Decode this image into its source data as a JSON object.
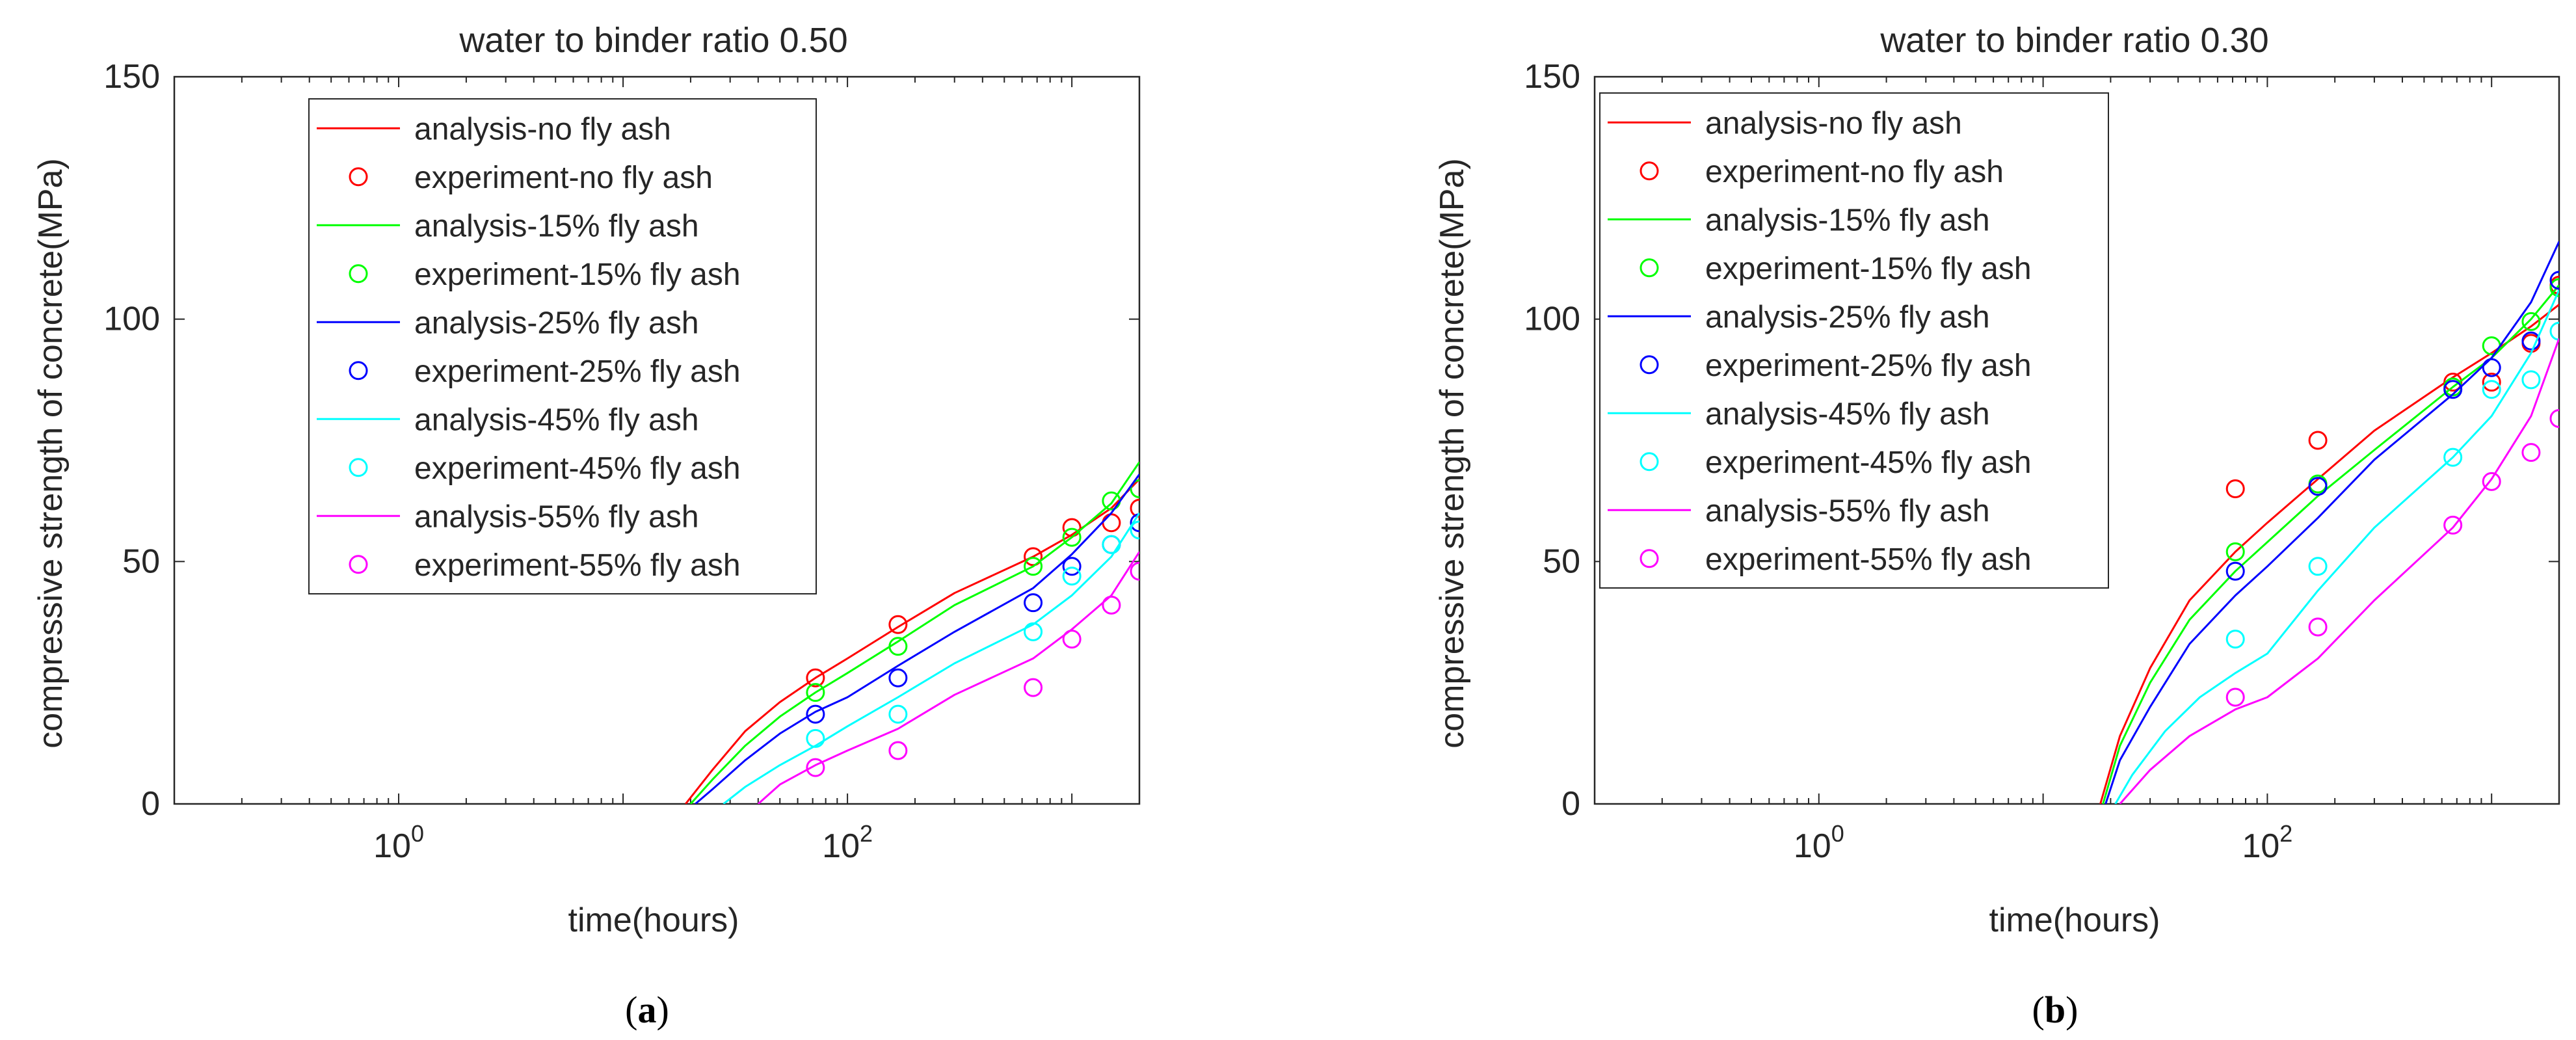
{
  "colors": {
    "red": "#ff0000",
    "green": "#00ff00",
    "blue": "#0000ff",
    "cyan": "#00ffff",
    "magenta": "#ff00ff"
  },
  "chart_data": [
    {
      "type": "line",
      "panel_caption": "(a)",
      "caption_letter": "a",
      "title": "water to binder ratio 0.50",
      "xlabel": "time(hours)",
      "ylabel": "compressive strength of concrete(MPa)",
      "xscale": "log",
      "xlim": [
        0.1,
        2000
      ],
      "ylim": [
        0,
        150
      ],
      "xticks": [
        {
          "value": 1,
          "label": "10",
          "exp": "0"
        },
        {
          "value": 100,
          "label": "10",
          "exp": "2"
        }
      ],
      "yticks": [
        0,
        50,
        100,
        150
      ],
      "legend_position": "top-left",
      "legend": [
        "analysis-no fly ash",
        "experiment-no fly ash",
        "analysis-15% fly ash",
        "experiment-15% fly ash",
        "analysis-25% fly ash",
        "experiment-25% fly ash",
        "analysis-45% fly ash",
        "experiment-45% fly ash",
        "analysis-55% fly ash",
        "experiment-55% fly ash"
      ],
      "series": [
        {
          "name": "analysis-no fly ash",
          "kind": "line",
          "color": "#ff0000",
          "x": [
            19,
            25,
            35,
            50,
            72,
            100,
            168,
            300,
            672,
            1000,
            1500,
            2000
          ],
          "y": [
            0,
            7,
            15,
            21,
            26,
            30,
            36.5,
            43.5,
            51,
            55.5,
            61,
            67
          ]
        },
        {
          "name": "experiment-no fly ash",
          "kind": "markers",
          "color": "#ff0000",
          "x": [
            72,
            168,
            672,
            1000,
            1500,
            2000
          ],
          "y": [
            26,
            37,
            51,
            57,
            58,
            61
          ]
        },
        {
          "name": "analysis-15% fly ash",
          "kind": "line",
          "color": "#00ff00",
          "x": [
            20,
            25,
            35,
            50,
            72,
            100,
            168,
            300,
            672,
            1000,
            1500,
            2000
          ],
          "y": [
            0,
            5,
            12,
            18,
            23,
            27,
            33.5,
            41,
            49,
            55,
            62,
            70.5
          ]
        },
        {
          "name": "experiment-15% fly ash",
          "kind": "markers",
          "color": "#00ff00",
          "x": [
            72,
            168,
            672,
            1000,
            1500,
            2000
          ],
          "y": [
            23,
            32.5,
            49,
            55,
            62.5,
            65
          ]
        },
        {
          "name": "analysis-25% fly ash",
          "kind": "line",
          "color": "#0000ff",
          "x": [
            21,
            25,
            35,
            50,
            72,
            100,
            168,
            300,
            672,
            1000,
            1500,
            2000
          ],
          "y": [
            0,
            3,
            9,
            14.5,
            19,
            22,
            28.5,
            35.5,
            44.5,
            51.5,
            60,
            68
          ]
        },
        {
          "name": "experiment-25% fly ash",
          "kind": "markers",
          "color": "#0000ff",
          "x": [
            72,
            168,
            672,
            1000,
            1500,
            2000
          ],
          "y": [
            18.5,
            26,
            41.5,
            49,
            53.5,
            58
          ]
        },
        {
          "name": "analysis-45% fly ash",
          "kind": "line",
          "color": "#00ffff",
          "x": [
            28,
            35,
            50,
            72,
            100,
            168,
            300,
            672,
            1000,
            1500,
            2000
          ],
          "y": [
            0,
            3.5,
            8,
            12,
            16,
            22,
            29,
            37,
            43,
            51,
            60
          ]
        },
        {
          "name": "experiment-45% fly ash",
          "kind": "markers",
          "color": "#00ffff",
          "x": [
            72,
            168,
            672,
            1000,
            1500,
            2000
          ],
          "y": [
            13.5,
            18.5,
            35.5,
            47,
            53.5,
            56.5
          ]
        },
        {
          "name": "analysis-55% fly ash",
          "kind": "line",
          "color": "#ff00ff",
          "x": [
            40,
            50,
            72,
            100,
            168,
            300,
            672,
            1000,
            1500,
            2000
          ],
          "y": [
            0,
            4,
            8,
            11,
            15.5,
            22.5,
            30,
            36,
            43,
            52
          ]
        },
        {
          "name": "experiment-55% fly ash",
          "kind": "markers",
          "color": "#ff00ff",
          "x": [
            72,
            168,
            672,
            1000,
            1500,
            2000
          ],
          "y": [
            7.5,
            11,
            24,
            34,
            41,
            48
          ]
        }
      ]
    },
    {
      "type": "line",
      "panel_caption": "(b)",
      "caption_letter": "b",
      "title": "water to binder ratio 0.30",
      "xlabel": "time(hours)",
      "ylabel": "compressive strength of concrete(MPa)",
      "xscale": "log",
      "xlim": [
        0.1,
        2000
      ],
      "ylim": [
        0,
        150
      ],
      "xticks": [
        {
          "value": 1,
          "label": "10",
          "exp": "0"
        },
        {
          "value": 100,
          "label": "10",
          "exp": "2"
        }
      ],
      "yticks": [
        0,
        50,
        100,
        150
      ],
      "legend_position": "top-left",
      "legend": [
        "analysis-no fly ash",
        "experiment-no fly ash",
        "analysis-15% fly ash",
        "experiment-15% fly ash",
        "analysis-25% fly ash",
        "experiment-25% fly ash",
        "analysis-45% fly ash",
        "experiment-45% fly ash",
        "analysis-55% fly ash",
        "experiment-55% fly ash"
      ],
      "series": [
        {
          "name": "analysis-no fly ash",
          "kind": "line",
          "color": "#ff0000",
          "x": [
            18,
            22,
            30,
            45,
            72,
            100,
            168,
            300,
            672,
            1000,
            1500,
            2000
          ],
          "y": [
            0,
            14,
            28,
            42,
            52,
            58,
            67,
            77,
            88,
            93,
            98.5,
            103
          ]
        },
        {
          "name": "experiment-no fly ash",
          "kind": "markers",
          "color": "#ff0000",
          "x": [
            72,
            168,
            672,
            1000,
            1500,
            2000
          ],
          "y": [
            65,
            75,
            87,
            87,
            95,
            107
          ]
        },
        {
          "name": "analysis-15% fly ash",
          "kind": "line",
          "color": "#00ff00",
          "x": [
            18.5,
            22,
            30,
            45,
            72,
            100,
            168,
            300,
            672,
            1000,
            1500,
            2000
          ],
          "y": [
            0,
            12,
            25,
            38,
            48,
            54,
            63.5,
            73,
            86,
            92,
            100,
            107
          ]
        },
        {
          "name": "experiment-15% fly ash",
          "kind": "markers",
          "color": "#00ff00",
          "x": [
            72,
            168,
            672,
            1000,
            1500,
            2000
          ],
          "y": [
            52,
            66,
            86,
            94.5,
            99.5,
            106.5
          ]
        },
        {
          "name": "analysis-25% fly ash",
          "kind": "line",
          "color": "#0000ff",
          "x": [
            19,
            22,
            30,
            45,
            72,
            100,
            168,
            300,
            672,
            1000,
            1500,
            2000
          ],
          "y": [
            0,
            9,
            20,
            33,
            43,
            49,
            59,
            71,
            84.5,
            92,
            103.5,
            116
          ]
        },
        {
          "name": "experiment-25% fly ash",
          "kind": "markers",
          "color": "#0000ff",
          "x": [
            72,
            168,
            672,
            1000,
            1500,
            2000
          ],
          "y": [
            48,
            65.5,
            85.5,
            90,
            95.5,
            108
          ]
        },
        {
          "name": "analysis-45% fly ash",
          "kind": "line",
          "color": "#00ffff",
          "x": [
            21,
            25,
            35,
            50,
            72,
            100,
            168,
            300,
            672,
            1000,
            1500,
            2000
          ],
          "y": [
            0,
            6,
            15,
            22,
            27,
            31,
            44,
            57,
            71.5,
            80,
            93,
            106
          ]
        },
        {
          "name": "experiment-45% fly ash",
          "kind": "markers",
          "color": "#00ffff",
          "x": [
            72,
            168,
            672,
            1000,
            1500,
            2000
          ],
          "y": [
            34,
            49,
            71.5,
            85.5,
            87.5,
            97.5
          ]
        },
        {
          "name": "analysis-55% fly ash",
          "kind": "line",
          "color": "#ff00ff",
          "x": [
            22,
            30,
            45,
            72,
            100,
            168,
            300,
            672,
            1000,
            1500,
            2000
          ],
          "y": [
            0,
            7,
            14,
            19.5,
            22,
            30,
            42,
            57,
            67,
            80,
            96
          ]
        },
        {
          "name": "experiment-55% fly ash",
          "kind": "markers",
          "color": "#ff00ff",
          "x": [
            72,
            168,
            672,
            1000,
            1500,
            2000
          ],
          "y": [
            22,
            36.5,
            57.5,
            66.5,
            72.5,
            79.5
          ]
        }
      ]
    }
  ]
}
